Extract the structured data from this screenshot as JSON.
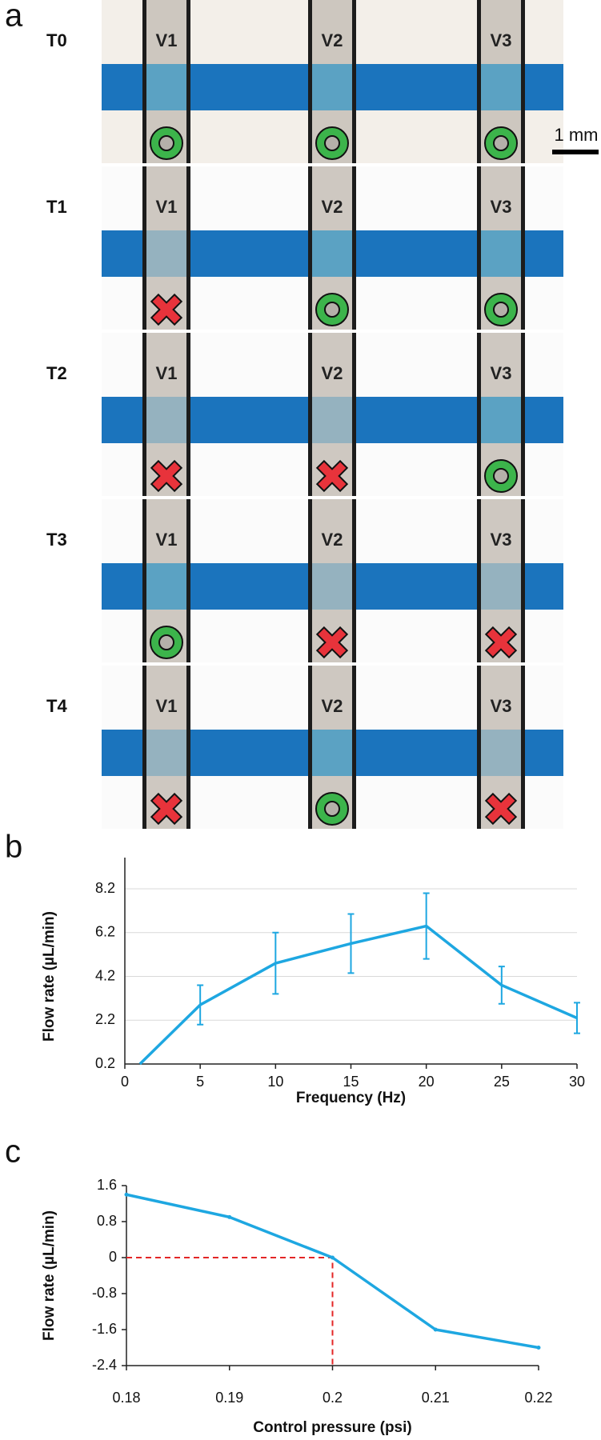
{
  "panel_a": {
    "label": "a",
    "scale_bar": "1 mm",
    "rows": [
      {
        "label": "T0",
        "valves": [
          {
            "label": "V1",
            "open": true
          },
          {
            "label": "V2",
            "open": true
          },
          {
            "label": "V3",
            "open": true
          }
        ]
      },
      {
        "label": "T1",
        "valves": [
          {
            "label": "V1",
            "open": false
          },
          {
            "label": "V2",
            "open": true
          },
          {
            "label": "V3",
            "open": true
          }
        ]
      },
      {
        "label": "T2",
        "valves": [
          {
            "label": "V1",
            "open": false
          },
          {
            "label": "V2",
            "open": false
          },
          {
            "label": "V3",
            "open": true
          }
        ]
      },
      {
        "label": "T3",
        "valves": [
          {
            "label": "V1",
            "open": true
          },
          {
            "label": "V2",
            "open": false
          },
          {
            "label": "V3",
            "open": false
          }
        ]
      },
      {
        "label": "T4",
        "valves": [
          {
            "label": "V1",
            "open": false
          },
          {
            "label": "V2",
            "open": true
          },
          {
            "label": "V3",
            "open": false
          }
        ]
      }
    ]
  },
  "chart_data": [
    {
      "type": "line",
      "label": "b",
      "x_label": "Frequency (Hz)",
      "y_label": "Flow rate (µL/min)",
      "x": [
        1,
        5,
        10,
        15,
        20,
        25,
        30
      ],
      "values": [
        0.2,
        2.9,
        4.8,
        5.7,
        6.5,
        3.8,
        2.3
      ],
      "errors": [
        null,
        0.9,
        1.4,
        1.35,
        1.5,
        0.85,
        0.7
      ],
      "color": "#1ea7e1",
      "grid": true,
      "xlim": [
        0,
        30
      ],
      "xticks": [
        0,
        5,
        10,
        15,
        20,
        25,
        30
      ],
      "ylim": [
        0.2,
        8.2
      ],
      "yticks": [
        0.2,
        2.2,
        4.2,
        6.2,
        8.2
      ]
    },
    {
      "type": "line",
      "label": "c",
      "x_label": "Control pressure (psi)",
      "y_label": "Flow rate (µL/min)",
      "x": [
        0.18,
        0.19,
        0.2,
        0.21,
        0.22
      ],
      "values": [
        1.4,
        0.9,
        0,
        -1.6,
        -2.0
      ],
      "color": "#1ea7e1",
      "grid": false,
      "reference_color": "#e32626",
      "xlim": [
        0.18,
        0.22
      ],
      "xticks": [
        0.18,
        0.19,
        0.2,
        0.21,
        0.22
      ],
      "ylim": [
        -2.4,
        1.6
      ],
      "yticks": [
        -2.4,
        -1.6,
        -0.8,
        0,
        0.8,
        1.6
      ]
    }
  ]
}
